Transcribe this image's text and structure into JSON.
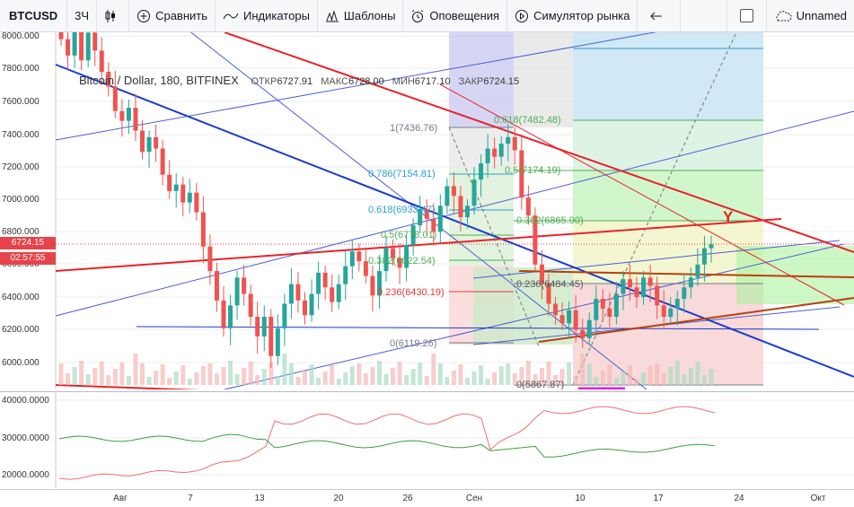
{
  "toolbar": {
    "symbol": "BTCUSD",
    "interval": "3Ч",
    "compare": "Сравнить",
    "indicators": "Индикаторы",
    "templates": "Шаблоны",
    "alerts": "Оповещения",
    "replay": "Симулятор рынка",
    "layout_name": "Unnamed"
  },
  "legend": {
    "title": "Bitcoin / Dollar, 180, BITFINEX",
    "open_label": "ОТКР",
    "open": "6727.91",
    "high_label": "МАКС",
    "high": "6728.00",
    "low_label": "МИН",
    "low": "6717.10",
    "close_label": "ЗАКР",
    "close": "6724.15"
  },
  "price_axis": {
    "labels": [
      "8000.000",
      "7800.000",
      "7600.000",
      "7400.000",
      "7200.000",
      "7000.000",
      "6800.000",
      "6600.000",
      "6400.000",
      "6200.000",
      "6000.000"
    ],
    "last_price": "6724.15",
    "countdown": "02:57:55"
  },
  "osc_axis": {
    "labels": [
      "40000.0000",
      "30000.0000",
      "20000.0000"
    ]
  },
  "time_axis": {
    "labels": [
      "Авг",
      "7",
      "13",
      "20",
      "26",
      "Сен",
      "10",
      "17",
      "24",
      "Окт"
    ]
  },
  "fib_levels": [
    {
      "label": "1(7436.76)",
      "color": "#787b86"
    },
    {
      "label": "0.786(7154.81)",
      "color": "#2a9fd6"
    },
    {
      "label": "0.618(6933.47)",
      "color": "#2a9fd6"
    },
    {
      "label": "0.5(6778.01)",
      "color": "#4caf50"
    },
    {
      "label": "0.382(6622.54)",
      "color": "#4caf50"
    },
    {
      "label": "0.236(6430.19)",
      "color": "#e53935"
    },
    {
      "label": "0(6119.26)",
      "color": "#787b86"
    },
    {
      "label": "0.618(7482.48)",
      "color": "#4caf50"
    },
    {
      "label": "0.5(7174.19)",
      "color": "#4caf50"
    },
    {
      "label": "0.382(6865.90)",
      "color": "#4caf50"
    },
    {
      "label": "0.236(6484.45)",
      "color": "#555555"
    },
    {
      "label": "0(5867.87)",
      "color": "#555555"
    }
  ],
  "annotation": "Y",
  "colors": {
    "up": "#26a69a",
    "down": "#ef5350",
    "red_line": "#e8232a",
    "blue_line": "#1a3ccc",
    "thin_blue": "#4a5fd6"
  }
}
